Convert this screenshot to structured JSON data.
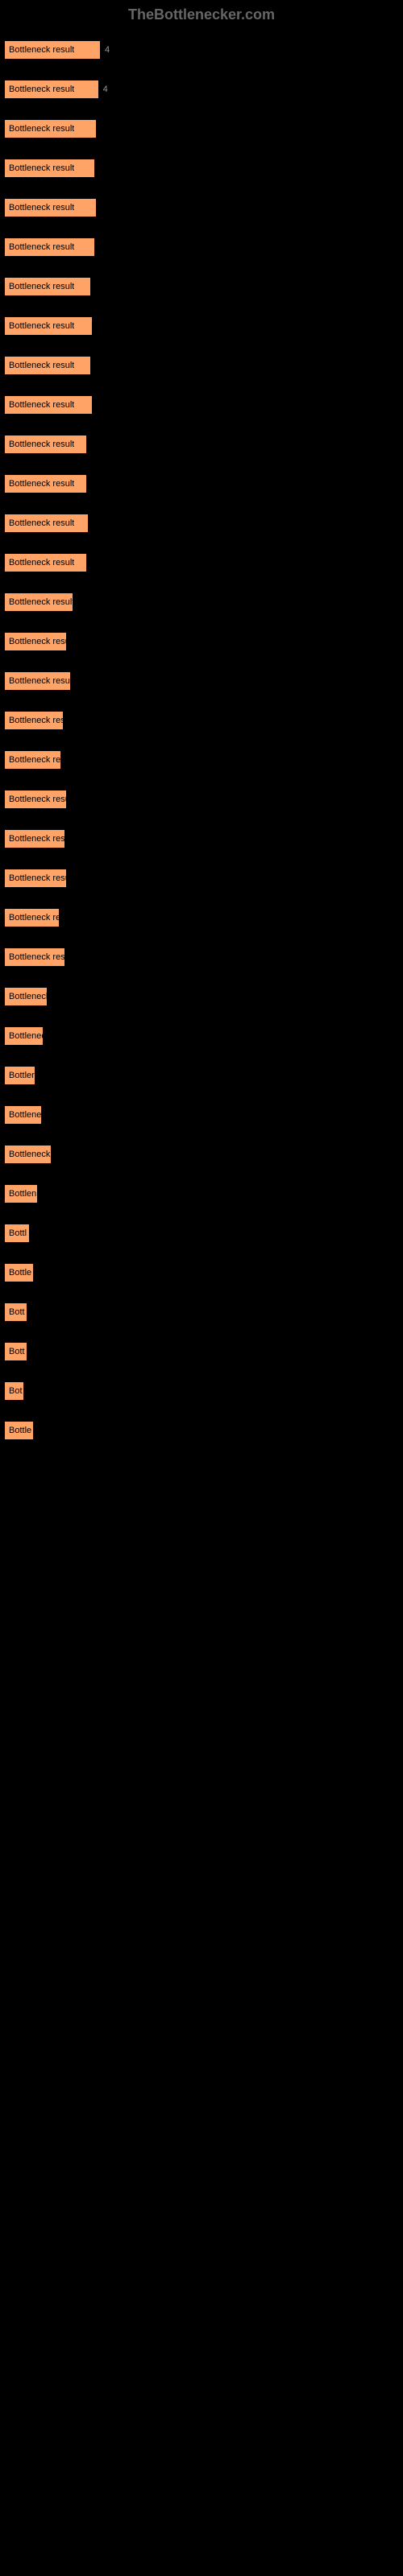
{
  "header": {
    "title": "TheBottlenecker.com"
  },
  "chart": {
    "type": "bar",
    "bar_color": "#ffa366",
    "background_color": "#000000",
    "text_color": "#999999",
    "bar_text_color": "#000000",
    "max_width": 490,
    "bars": [
      {
        "label": "",
        "text": "Bottleneck result",
        "value": "4",
        "width_pct": 24.5
      },
      {
        "label": "",
        "text": "Bottleneck result",
        "value": "4",
        "width_pct": 24
      },
      {
        "label": "",
        "text": "Bottleneck result",
        "value": "",
        "width_pct": 23.5
      },
      {
        "label": "",
        "text": "Bottleneck result",
        "value": "",
        "width_pct": 23
      },
      {
        "label": "",
        "text": "Bottleneck result",
        "value": "",
        "width_pct": 23.5
      },
      {
        "label": "",
        "text": "Bottleneck result",
        "value": "",
        "width_pct": 23
      },
      {
        "label": "",
        "text": "Bottleneck result",
        "value": "",
        "width_pct": 22
      },
      {
        "label": "",
        "text": "Bottleneck result",
        "value": "",
        "width_pct": 22.5
      },
      {
        "label": "",
        "text": "Bottleneck result",
        "value": "",
        "width_pct": 22
      },
      {
        "label": "",
        "text": "Bottleneck result",
        "value": "",
        "width_pct": 22.5
      },
      {
        "label": "",
        "text": "Bottleneck result",
        "value": "",
        "width_pct": 21
      },
      {
        "label": "",
        "text": "Bottleneck result",
        "value": "",
        "width_pct": 21
      },
      {
        "label": "",
        "text": "Bottleneck result",
        "value": "",
        "width_pct": 21.5
      },
      {
        "label": "",
        "text": "Bottleneck result",
        "value": "",
        "width_pct": 21
      },
      {
        "label": "",
        "text": "Bottleneck result",
        "value": "",
        "width_pct": 17.5
      },
      {
        "label": "",
        "text": "Bottleneck result",
        "value": "",
        "width_pct": 16
      },
      {
        "label": "",
        "text": "Bottleneck result",
        "value": "",
        "width_pct": 17
      },
      {
        "label": "",
        "text": "Bottleneck result",
        "value": "",
        "width_pct": 15
      },
      {
        "label": "",
        "text": "Bottleneck resu",
        "value": "",
        "width_pct": 14.5
      },
      {
        "label": "",
        "text": "Bottleneck result",
        "value": "",
        "width_pct": 16
      },
      {
        "label": "",
        "text": "Bottleneck result",
        "value": "",
        "width_pct": 15.5
      },
      {
        "label": "",
        "text": "Bottleneck result",
        "value": "",
        "width_pct": 16
      },
      {
        "label": "",
        "text": "Bottleneck res",
        "value": "",
        "width_pct": 14
      },
      {
        "label": "",
        "text": "Bottleneck result",
        "value": "",
        "width_pct": 15.5
      },
      {
        "label": "",
        "text": "Bottleneck",
        "value": "",
        "width_pct": 11
      },
      {
        "label": "",
        "text": "Bottlenec",
        "value": "",
        "width_pct": 10
      },
      {
        "label": "",
        "text": "Bottler",
        "value": "",
        "width_pct": 8
      },
      {
        "label": "",
        "text": "Bottlene",
        "value": "",
        "width_pct": 9.5
      },
      {
        "label": "",
        "text": "Bottleneck r",
        "value": "",
        "width_pct": 12
      },
      {
        "label": "",
        "text": "Bottlen",
        "value": "",
        "width_pct": 8.5
      },
      {
        "label": "",
        "text": "Bottl",
        "value": "",
        "width_pct": 6.5
      },
      {
        "label": "",
        "text": "Bottle",
        "value": "",
        "width_pct": 7.5
      },
      {
        "label": "",
        "text": "Bott",
        "value": "",
        "width_pct": 6
      },
      {
        "label": "",
        "text": "Bott",
        "value": "",
        "width_pct": 6
      },
      {
        "label": "",
        "text": "Bot",
        "value": "",
        "width_pct": 5
      },
      {
        "label": "",
        "text": "Bottle",
        "value": "",
        "width_pct": 7.5
      }
    ]
  }
}
